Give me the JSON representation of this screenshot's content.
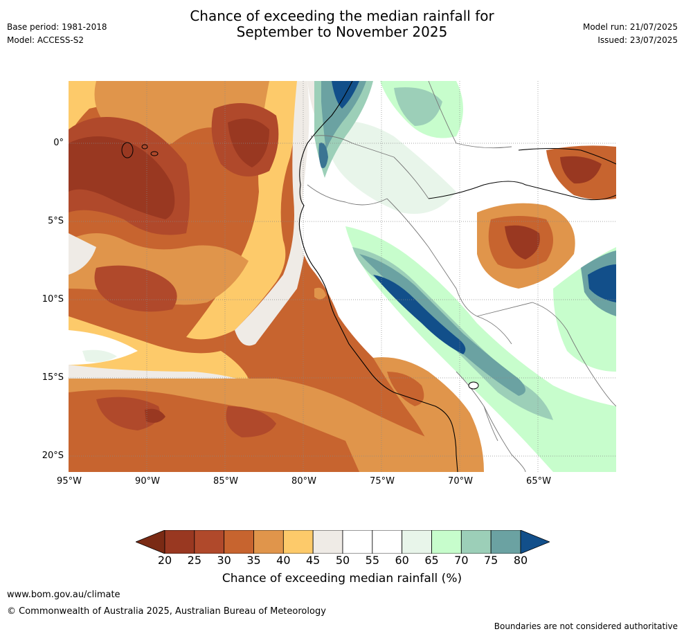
{
  "header": {
    "title_line1": "Chance of exceeding the median rainfall for",
    "title_line2": "September to November 2025",
    "base_period": "Base period: 1981-2018",
    "model": "Model: ACCESS-S2",
    "model_run": "Model run: 21/07/2025",
    "issued": "Issued: 23/07/2025"
  },
  "map": {
    "lat_labels": [
      "0°",
      "5°S",
      "10°S",
      "15°S",
      "20°S"
    ],
    "lon_labels": [
      "95°W",
      "90°W",
      "85°W",
      "80°W",
      "75°W",
      "70°W",
      "65°W"
    ],
    "ocean_background": "#c7642f",
    "colors": {
      "c15": "#7a2a14",
      "c20": "#993821",
      "c25": "#b0492b",
      "c30": "#c7642f",
      "c35": "#e0954b",
      "c40": "#fdca6a",
      "c45": "#efebe6",
      "c50": "#ffffff",
      "c55": "#ffffff",
      "c60": "#e8f5ea",
      "c65": "#c7fdcc",
      "c70": "#9ccfb8",
      "c75": "#6ba2a2",
      "c80": "#3b7492",
      "c85": "#124f8a"
    }
  },
  "colorbar": {
    "ticks": [
      "20",
      "25",
      "30",
      "35",
      "40",
      "45",
      "50",
      "55",
      "60",
      "65",
      "70",
      "75",
      "80"
    ],
    "colors": [
      "#993821",
      "#b0492b",
      "#c7642f",
      "#e0954b",
      "#fdca6a",
      "#efebe6",
      "#ffffff",
      "#ffffff",
      "#e8f5ea",
      "#c7fdcc",
      "#9ccfb8",
      "#6ba2a2",
      "#3b7492",
      "#124f8a"
    ],
    "label": "Chance of exceeding median rainfall (%)"
  },
  "footer": {
    "website": "www.bom.gov.au/climate",
    "copyright": "© Commonwealth of Australia 2025, Australian Bureau of Meteorology",
    "disclaimer": "Boundaries are not considered authoritative"
  }
}
